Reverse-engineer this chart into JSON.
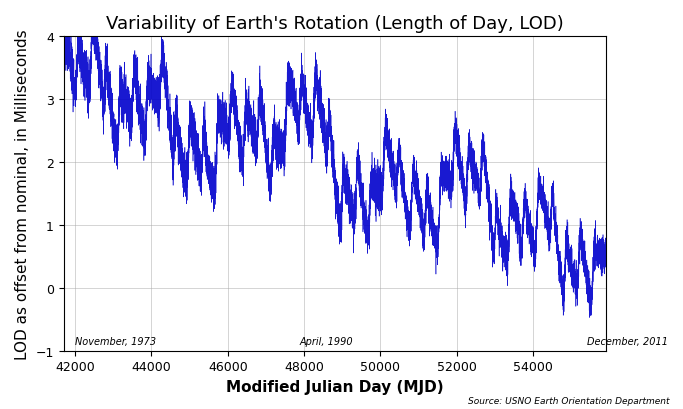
{
  "title": "Variability of Earth's Rotation (Length of Day, LOD)",
  "xlabel": "Modified Julian Day (MJD)",
  "ylabel": "LOD as offset from nominal, in Milliseconds",
  "source_text": "Source: USNO Earth Orientation Department",
  "xlim": [
    41700,
    55900
  ],
  "ylim": [
    -1,
    4
  ],
  "xticks": [
    42000,
    44000,
    46000,
    48000,
    50000,
    52000,
    54000
  ],
  "yticks": [
    -1,
    0,
    1,
    2,
    3,
    4
  ],
  "date_annotations": [
    {
      "x": 42000,
      "label": "November, 1973"
    },
    {
      "x": 47892,
      "label": "April, 1990"
    },
    {
      "x": 55400,
      "label": "December, 2011"
    }
  ],
  "line_color": "#0000cc",
  "bg_color": "#ffffff",
  "grid_color": "#aaaaaa",
  "title_fontsize": 13,
  "axis_label_fontsize": 11,
  "tick_fontsize": 9,
  "annotation_fontsize": 7,
  "source_fontsize": 6.5
}
